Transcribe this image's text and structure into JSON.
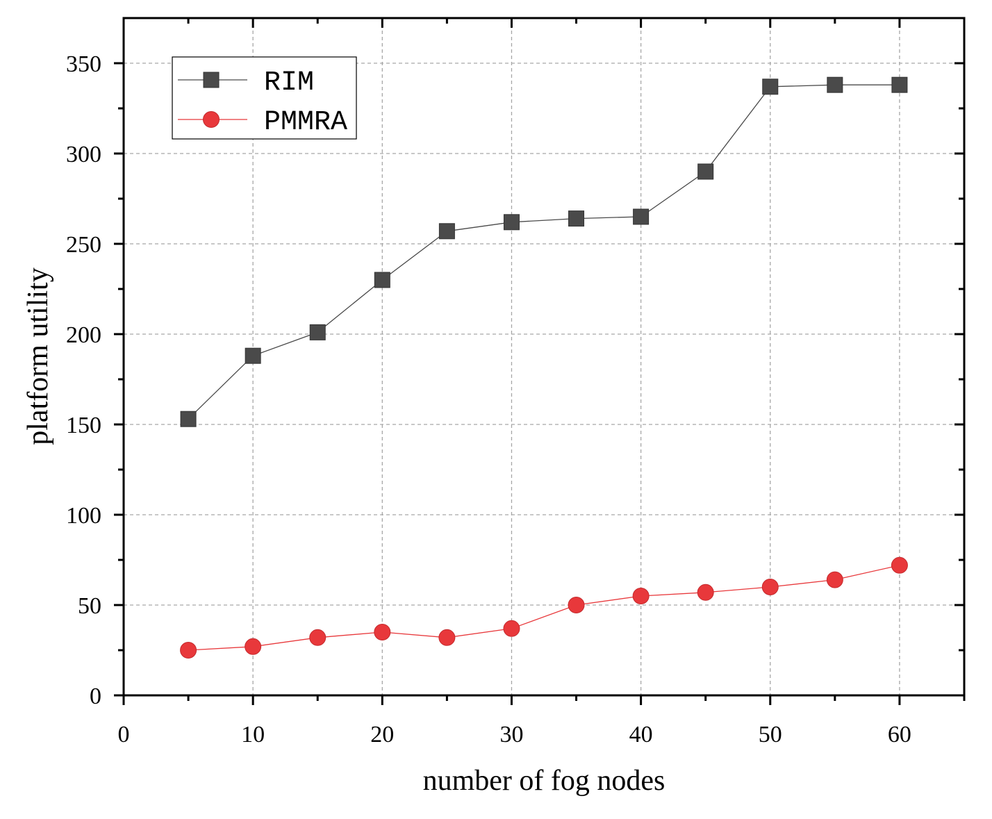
{
  "chart_data": {
    "type": "line",
    "title": "",
    "xlabel": "number of fog nodes",
    "ylabel": "platform utility",
    "xlim": [
      0,
      65
    ],
    "ylim": [
      0,
      375
    ],
    "x_ticks": [
      0,
      10,
      20,
      30,
      40,
      50,
      60
    ],
    "y_ticks": [
      0,
      50,
      100,
      150,
      200,
      250,
      300,
      350
    ],
    "x_tick_labels": [
      "0",
      "10",
      "20",
      "30",
      "40",
      "50",
      "60"
    ],
    "y_tick_labels": [
      "0",
      "50",
      "100",
      "150",
      "200",
      "250",
      "300",
      "350"
    ],
    "grid": true,
    "legend_position": "top-left",
    "x": [
      5,
      10,
      15,
      20,
      25,
      30,
      35,
      40,
      45,
      50,
      55,
      60
    ],
    "series": [
      {
        "name": "RIM",
        "marker": "square",
        "color": "#4a4a4a",
        "values": [
          153,
          188,
          201,
          230,
          257,
          262,
          264,
          265,
          290,
          337,
          338,
          338
        ]
      },
      {
        "name": "PMMRA",
        "marker": "circle",
        "color": "#e8383b",
        "values": [
          25,
          27,
          32,
          35,
          32,
          37,
          50,
          55,
          57,
          60,
          64,
          72
        ]
      }
    ]
  }
}
